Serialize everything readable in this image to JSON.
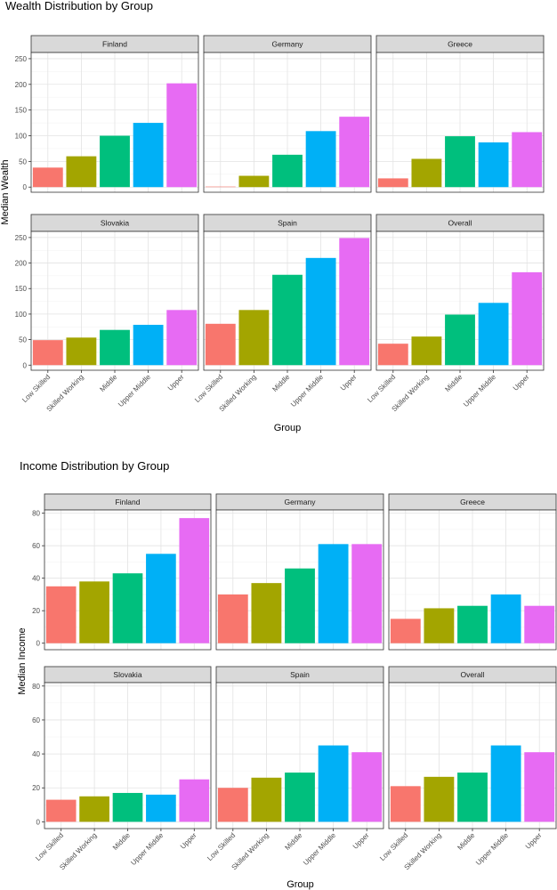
{
  "chart_data": [
    {
      "type": "bar",
      "title": "Wealth Distribution by Group",
      "xlabel": "Group",
      "ylabel": "Median Wealth",
      "ylim": [
        -10,
        262
      ],
      "yticks": [
        0,
        50,
        100,
        150,
        200,
        250
      ],
      "grid": true,
      "legend": "none",
      "categories": [
        "Low Skilled",
        "Skilled Working",
        "Middle",
        "Upper Middle",
        "Upper"
      ],
      "colors": [
        "#F8766D",
        "#A3A500",
        "#00BF7D",
        "#00B0F6",
        "#E76BF3"
      ],
      "panels": [
        {
          "name": "Finland",
          "values": [
            38,
            60,
            100,
            125,
            202
          ]
        },
        {
          "name": "Germany",
          "values": [
            1,
            22,
            63,
            109,
            137
          ]
        },
        {
          "name": "Greece",
          "values": [
            17,
            55,
            99,
            87,
            107
          ]
        },
        {
          "name": "Slovakia",
          "values": [
            49,
            54,
            69,
            79,
            108
          ]
        },
        {
          "name": "Spain",
          "values": [
            81,
            108,
            177,
            210,
            249
          ]
        },
        {
          "name": "Overall",
          "values": [
            42,
            56,
            99,
            122,
            182
          ]
        }
      ]
    },
    {
      "type": "bar",
      "title": "Income Distribution by Group",
      "xlabel": "Group",
      "ylabel": "Median Income",
      "ylim": [
        -4,
        82
      ],
      "yticks": [
        0,
        20,
        40,
        60,
        80
      ],
      "grid": true,
      "legend": "none",
      "categories": [
        "Low Skilled",
        "Skilled Working",
        "Middle",
        "Upper Middle",
        "Upper"
      ],
      "colors": [
        "#F8766D",
        "#A3A500",
        "#00BF7D",
        "#00B0F6",
        "#E76BF3"
      ],
      "panels": [
        {
          "name": "Finland",
          "values": [
            35,
            38,
            43,
            55,
            77
          ]
        },
        {
          "name": "Germany",
          "values": [
            30,
            37,
            46,
            61,
            61
          ]
        },
        {
          "name": "Greece",
          "values": [
            15,
            21.5,
            23,
            30,
            23
          ]
        },
        {
          "name": "Slovakia",
          "values": [
            13,
            15,
            17,
            16,
            25
          ]
        },
        {
          "name": "Spain",
          "values": [
            20,
            26,
            29,
            45,
            41
          ]
        },
        {
          "name": "Overall",
          "values": [
            21,
            26.5,
            29,
            45,
            41
          ]
        }
      ]
    }
  ]
}
